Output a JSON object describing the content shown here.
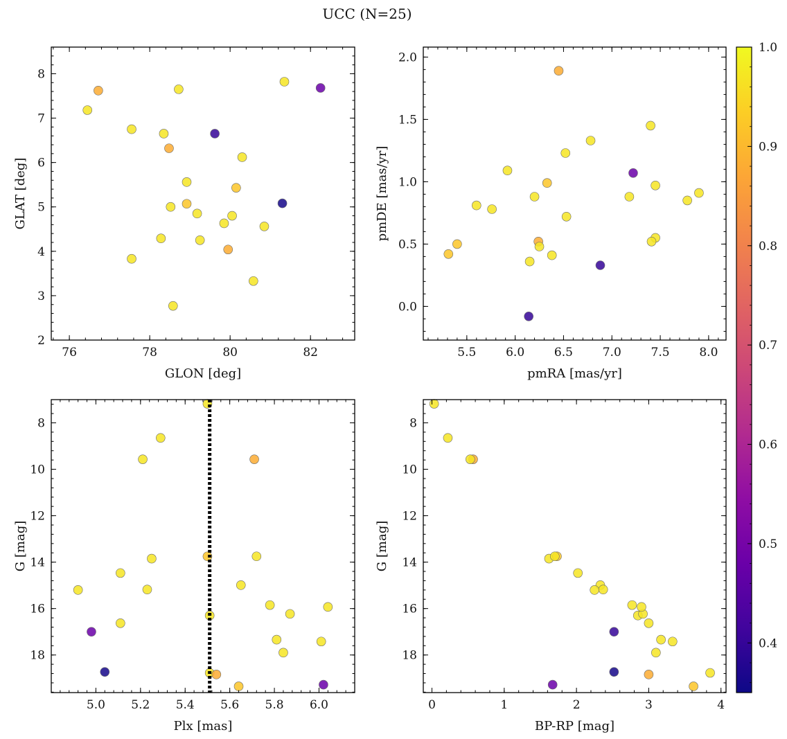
{
  "figure": {
    "title": "UCC (N=25)"
  },
  "chart_data": [
    {
      "type": "scatter",
      "xlabel": "GLON [deg]",
      "ylabel": "GLAT [deg]",
      "xlim": [
        75.55,
        83.1
      ],
      "ylim": [
        2.0,
        8.6
      ],
      "yinvert": false,
      "xticks": [
        76,
        78,
        80,
        82
      ],
      "yticks": [
        2,
        3,
        4,
        5,
        6,
        7,
        8
      ],
      "xtick_labels": [
        "76",
        "78",
        "80",
        "82"
      ],
      "ytick_labels": [
        "2",
        "3",
        "4",
        "5",
        "6",
        "7",
        "8"
      ],
      "x": [
        76.45,
        76.72,
        77.55,
        78.35,
        78.72,
        79.62,
        81.35,
        82.25,
        78.48,
        80.3,
        78.92,
        80.15,
        78.52,
        78.92,
        79.18,
        81.3,
        80.05,
        79.85,
        80.85,
        78.28,
        79.25,
        79.95,
        77.55,
        80.58,
        78.58
      ],
      "y": [
        7.18,
        7.62,
        6.75,
        6.65,
        7.65,
        6.65,
        7.82,
        7.68,
        6.32,
        6.12,
        5.56,
        5.43,
        5.0,
        5.07,
        4.85,
        5.08,
        4.8,
        4.63,
        4.56,
        4.29,
        4.25,
        4.04,
        3.83,
        3.33,
        2.77
      ],
      "c": [
        0.97,
        0.88,
        0.97,
        0.97,
        0.97,
        0.4,
        0.97,
        0.48,
        0.88,
        0.97,
        0.97,
        0.92,
        0.97,
        0.92,
        0.97,
        0.36,
        0.97,
        0.97,
        0.97,
        0.97,
        0.97,
        0.88,
        0.97,
        0.97,
        0.97
      ]
    },
    {
      "type": "scatter",
      "xlabel": "pmRA [mas/yr]",
      "ylabel": "pmDE [mas/yr]",
      "xlim": [
        5.05,
        8.18
      ],
      "ylim": [
        -0.27,
        2.08
      ],
      "yinvert": false,
      "xticks": [
        5.5,
        6.0,
        6.5,
        7.0,
        7.5,
        8.0
      ],
      "yticks": [
        0.0,
        0.5,
        1.0,
        1.5,
        2.0
      ],
      "xtick_labels": [
        "5.5",
        "6.0",
        "6.5",
        "7.0",
        "7.5",
        "8.0"
      ],
      "ytick_labels": [
        "0.0",
        "0.5",
        "1.0",
        "1.5",
        "2.0"
      ],
      "x": [
        6.45,
        7.4,
        6.78,
        6.52,
        5.92,
        7.22,
        6.33,
        7.45,
        7.9,
        6.2,
        7.18,
        7.78,
        5.6,
        5.76,
        6.53,
        7.45,
        7.41,
        5.4,
        6.24,
        6.25,
        5.31,
        6.38,
        6.15,
        6.88,
        6.14
      ],
      "y": [
        1.89,
        1.45,
        1.33,
        1.23,
        1.09,
        1.07,
        0.99,
        0.97,
        0.91,
        0.88,
        0.88,
        0.85,
        0.81,
        0.78,
        0.72,
        0.55,
        0.52,
        0.5,
        0.52,
        0.48,
        0.42,
        0.41,
        0.36,
        0.33,
        -0.08
      ],
      "c": [
        0.88,
        0.97,
        0.97,
        0.97,
        0.97,
        0.48,
        0.92,
        0.97,
        0.97,
        0.97,
        0.97,
        0.97,
        0.97,
        0.97,
        0.97,
        0.97,
        0.97,
        0.92,
        0.88,
        0.97,
        0.92,
        0.97,
        0.97,
        0.4,
        0.4
      ]
    },
    {
      "type": "scatter",
      "xlabel": "Plx [mas]",
      "ylabel": "G [mag]",
      "xlim": [
        4.8,
        6.16
      ],
      "ylim": [
        7.0,
        19.62
      ],
      "yinvert": true,
      "xticks": [
        5.0,
        5.2,
        5.4,
        5.6,
        5.8,
        6.0
      ],
      "yticks": [
        8,
        10,
        12,
        14,
        16,
        18
      ],
      "xtick_labels": [
        "5.0",
        "5.2",
        "5.4",
        "5.6",
        "5.8",
        "6.0"
      ],
      "ytick_labels": [
        "8",
        "10",
        "12",
        "14",
        "16",
        "18"
      ],
      "vline": 5.51,
      "x": [
        5.5,
        5.29,
        5.21,
        5.71,
        5.25,
        5.5,
        5.72,
        5.11,
        5.65,
        4.92,
        5.23,
        6.04,
        5.78,
        5.87,
        5.51,
        5.11,
        4.98,
        5.81,
        6.01,
        5.84,
        5.04,
        5.51,
        5.54,
        5.64,
        6.02
      ],
      "y": [
        7.18,
        8.65,
        9.57,
        9.57,
        13.85,
        13.75,
        13.75,
        14.47,
        14.99,
        15.2,
        15.18,
        15.93,
        15.85,
        16.23,
        16.3,
        16.63,
        17.0,
        17.34,
        17.42,
        17.9,
        18.73,
        18.77,
        18.84,
        19.35,
        19.28
      ],
      "c": [
        0.97,
        0.97,
        0.97,
        0.88,
        0.97,
        0.92,
        0.97,
        0.97,
        0.97,
        0.97,
        0.97,
        0.97,
        0.97,
        0.97,
        0.97,
        0.97,
        0.48,
        0.97,
        0.97,
        0.97,
        0.36,
        0.97,
        0.88,
        0.92,
        0.48
      ]
    },
    {
      "type": "scatter",
      "xlabel": "BP-RP [mag]",
      "ylabel": "G [mag]",
      "xlim": [
        -0.12,
        4.07
      ],
      "ylim": [
        7.0,
        19.62
      ],
      "yinvert": true,
      "xticks": [
        0,
        1,
        2,
        3,
        4
      ],
      "yticks": [
        8,
        10,
        12,
        14,
        16,
        18
      ],
      "xtick_labels": [
        "0",
        "1",
        "2",
        "3",
        "4"
      ],
      "ytick_labels": [
        "8",
        "10",
        "12",
        "14",
        "16",
        "18"
      ],
      "x": [
        0.03,
        0.22,
        0.57,
        0.53,
        1.62,
        1.73,
        1.7,
        2.02,
        2.33,
        2.25,
        2.37,
        2.77,
        2.85,
        2.92,
        2.9,
        3.0,
        2.52,
        3.17,
        3.33,
        3.1,
        2.52,
        3.85,
        3.0,
        3.62,
        1.67
      ],
      "y": [
        7.18,
        8.65,
        9.57,
        9.57,
        13.85,
        13.75,
        13.75,
        14.47,
        14.99,
        15.2,
        15.18,
        15.85,
        16.3,
        16.23,
        15.93,
        16.63,
        17.0,
        17.34,
        17.42,
        17.9,
        18.73,
        18.77,
        18.84,
        19.35,
        19.28
      ],
      "c": [
        0.97,
        0.97,
        0.88,
        0.97,
        0.97,
        0.92,
        0.97,
        0.97,
        0.97,
        0.97,
        0.97,
        0.97,
        0.97,
        0.97,
        0.97,
        0.97,
        0.4,
        0.97,
        0.97,
        0.97,
        0.36,
        0.97,
        0.88,
        0.92,
        0.48
      ]
    }
  ],
  "colorbar": {
    "colormap": "plasma",
    "range": [
      0.35,
      1.0
    ],
    "ticks": [
      0.4,
      0.5,
      0.6,
      0.7,
      0.8,
      0.9,
      1.0
    ],
    "tick_labels": [
      "0.4",
      "0.5",
      "0.6",
      "0.7",
      "0.8",
      "0.9",
      "1.0"
    ]
  }
}
